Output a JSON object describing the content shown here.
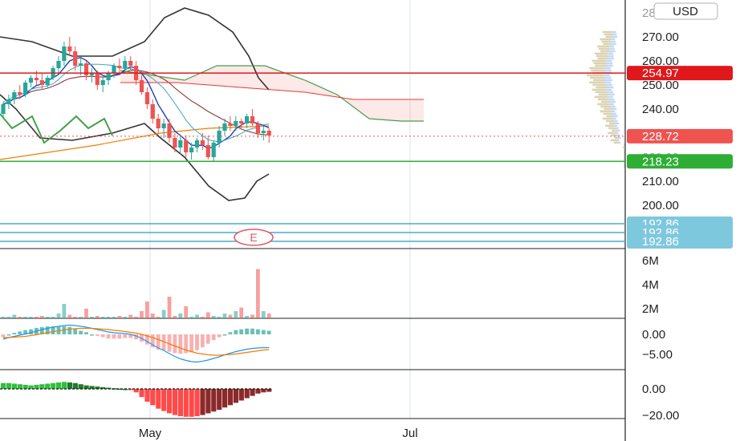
{
  "currency_button": "USD",
  "earnings_marker": "E",
  "colors": {
    "up": "#26a69a",
    "down": "#ef5350",
    "red_line": "#e0181b",
    "green_line": "#2eae34",
    "blue_line": "#4aaccc",
    "bb_line": "#333333",
    "ichimoku_green": "#43a047",
    "ichimoku_red": "#e53935",
    "ma_orange": "#f57c00",
    "ma_blue": "#1e3fb0",
    "ma_brown": "#8d3c3c"
  },
  "chart_data": [
    {
      "type": "candlestick",
      "name": "price",
      "x_ticks": [
        "May",
        "Jul"
      ],
      "y_ticks": [
        "270.00",
        "260.00",
        "250.00",
        "240.00",
        "210.00",
        "200.00"
      ],
      "ylim": [
        187,
        282
      ],
      "current_price": 228.72,
      "resistance": 254.97,
      "support": 218.23,
      "extra_levels": [
        192.86,
        192.86,
        192.86
      ],
      "ohlc": [
        [
          238,
          243,
          236,
          242
        ],
        [
          242,
          246,
          240,
          244
        ],
        [
          244,
          248,
          242,
          247
        ],
        [
          247,
          250,
          244,
          246
        ],
        [
          246,
          252,
          245,
          251
        ],
        [
          251,
          254,
          249,
          253
        ],
        [
          253,
          256,
          250,
          252
        ],
        [
          252,
          255,
          248,
          250
        ],
        [
          250,
          254,
          249,
          253
        ],
        [
          253,
          258,
          252,
          257
        ],
        [
          257,
          262,
          255,
          260
        ],
        [
          260,
          268,
          258,
          266
        ],
        [
          266,
          270,
          262,
          264
        ],
        [
          264,
          266,
          256,
          258
        ],
        [
          258,
          261,
          254,
          259
        ],
        [
          259,
          260,
          252,
          254
        ],
        [
          254,
          257,
          251,
          255
        ],
        [
          255,
          256,
          248,
          250
        ],
        [
          250,
          254,
          247,
          252
        ],
        [
          252,
          256,
          250,
          255
        ],
        [
          255,
          259,
          253,
          258
        ],
        [
          258,
          261,
          255,
          257
        ],
        [
          257,
          262,
          255,
          260
        ],
        [
          260,
          262,
          256,
          258
        ],
        [
          258,
          260,
          250,
          252
        ],
        [
          252,
          254,
          246,
          247
        ],
        [
          247,
          249,
          240,
          242
        ],
        [
          242,
          244,
          234,
          236
        ],
        [
          236,
          238,
          230,
          232
        ],
        [
          232,
          236,
          228,
          234
        ],
        [
          234,
          236,
          226,
          228
        ],
        [
          228,
          230,
          222,
          224
        ],
        [
          224,
          229,
          221,
          227
        ],
        [
          227,
          229,
          220,
          222
        ],
        [
          222,
          226,
          219,
          224
        ],
        [
          224,
          228,
          222,
          227
        ],
        [
          227,
          230,
          223,
          225
        ],
        [
          225,
          229,
          219,
          220
        ],
        [
          220,
          227,
          218,
          226
        ],
        [
          226,
          233,
          224,
          231
        ],
        [
          231,
          236,
          229,
          234
        ],
        [
          234,
          237,
          231,
          233
        ],
        [
          233,
          237,
          231,
          235
        ],
        [
          235,
          236,
          232,
          234
        ],
        [
          234,
          238,
          232,
          237
        ],
        [
          237,
          240,
          233,
          234
        ],
        [
          234,
          235,
          228,
          230
        ],
        [
          230,
          233,
          227,
          231
        ],
        [
          231,
          232,
          226,
          229
        ]
      ]
    },
    {
      "type": "bar",
      "name": "volume",
      "y_ticks": [
        "6M",
        "4M",
        "2M"
      ],
      "values": [
        1.2,
        1.0,
        1.5,
        1.1,
        0.9,
        1.3,
        1.0,
        1.4,
        1.2,
        1.1,
        1.6,
        2.4,
        1.5,
        1.3,
        1.2,
        2.0,
        1.1,
        1.4,
        1.3,
        1.0,
        1.2,
        1.4,
        1.1,
        1.5,
        1.3,
        1.8,
        2.6,
        1.6,
        1.2,
        1.9,
        3.0,
        1.4,
        1.6,
        2.2,
        1.3,
        1.5,
        1.2,
        1.7,
        1.4,
        1.3,
        1.6,
        1.5,
        1.8,
        2.1,
        1.4,
        1.5,
        5.3,
        1.8,
        1.6
      ]
    },
    {
      "type": "line",
      "name": "macd",
      "y_ticks": [
        "0.00",
        "−5.00"
      ],
      "macd": [
        -1.2,
        -0.8,
        -0.5,
        -0.2,
        0.1,
        0.4,
        0.8,
        1.2,
        1.5,
        1.8,
        2.0,
        2.2,
        2.3,
        2.2,
        2.0,
        1.8,
        1.5,
        1.2,
        0.9,
        0.6,
        0.4,
        0.3,
        0.2,
        0.0,
        -0.4,
        -1.0,
        -1.8,
        -2.6,
        -3.4,
        -4.0,
        -4.8,
        -5.5,
        -6.1,
        -6.5,
        -6.8,
        -6.9,
        -6.7,
        -6.4,
        -6.0,
        -5.6,
        -5.1,
        -4.7,
        -4.3,
        -4.0,
        -3.7,
        -3.5,
        -3.4,
        -3.3,
        -3.3
      ],
      "signal": [
        -0.8,
        -0.8,
        -0.7,
        -0.6,
        -0.5,
        -0.3,
        -0.1,
        0.2,
        0.4,
        0.7,
        0.9,
        1.1,
        1.3,
        1.4,
        1.5,
        1.5,
        1.5,
        1.4,
        1.3,
        1.2,
        1.0,
        0.9,
        0.7,
        0.5,
        0.3,
        0.0,
        -0.4,
        -0.8,
        -1.3,
        -1.8,
        -2.4,
        -2.9,
        -3.4,
        -3.9,
        -4.3,
        -4.7,
        -4.9,
        -5.1,
        -5.2,
        -5.2,
        -5.1,
        -5.0,
        -4.9,
        -4.7,
        -4.5,
        -4.3,
        -4.1,
        -3.9,
        -3.8
      ]
    },
    {
      "type": "bar",
      "name": "oscillator",
      "y_ticks": [
        "0.00",
        "−20.00"
      ],
      "values": [
        5,
        5,
        4.5,
        4,
        3.5,
        3,
        3.5,
        4,
        4.5,
        5,
        5.5,
        6,
        5.5,
        5,
        4,
        3,
        2.5,
        2,
        1.5,
        1,
        0.5,
        0.2,
        0,
        -0.5,
        -3,
        -7,
        -11,
        -14,
        -17,
        -19,
        -21,
        -22.5,
        -23.5,
        -24,
        -24,
        -23.5,
        -22.5,
        -21,
        -19.5,
        -18,
        -16,
        -14,
        -12,
        -10,
        -8,
        -6,
        -4,
        -3,
        -2.5
      ]
    }
  ]
}
